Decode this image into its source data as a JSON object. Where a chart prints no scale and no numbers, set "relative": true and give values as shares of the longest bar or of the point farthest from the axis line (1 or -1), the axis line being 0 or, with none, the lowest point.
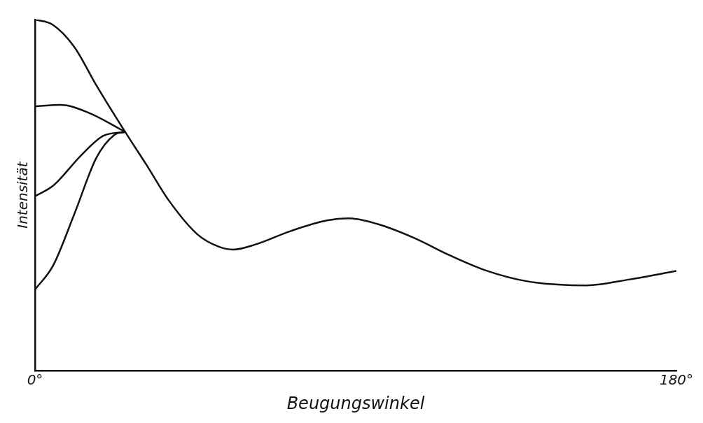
{
  "chart_data": {
    "type": "line",
    "relative": true,
    "xlabel": "Beugungswinkel",
    "ylabel": "Intensität",
    "xlim": [
      0,
      180
    ],
    "xticks": [
      {
        "value": 0,
        "label": "0°"
      },
      {
        "value": 180,
        "label": "180°"
      }
    ],
    "series": [
      {
        "color": "#111111",
        "x": [
          0,
          5,
          11.1,
          17.2,
          25.3,
          31.3,
          37.4,
          45.5,
          51.6,
          55.6,
          61.7,
          71.8,
          81.9,
          88,
          96,
          106.2,
          116.3,
          126.4,
          138.5,
          154.7,
          166.9,
          180
        ],
        "values": [
          1,
          0.985,
          0.921,
          0.813,
          0.68,
          0.586,
          0.487,
          0.389,
          0.353,
          0.345,
          0.359,
          0.398,
          0.428,
          0.434,
          0.418,
          0.379,
          0.329,
          0.286,
          0.254,
          0.243,
          0.26,
          0.284
        ]
      },
      {
        "color": "#111111",
        "x": [
          0,
          7.1,
          15.2,
          25.3
        ],
        "values": [
          0.753,
          0.757,
          0.734,
          0.68
        ]
      },
      {
        "color": "#111111",
        "x": [
          0,
          5.1,
          13.1,
          19.2,
          25.3
        ],
        "values": [
          0.497,
          0.527,
          0.615,
          0.669,
          0.68
        ]
      },
      {
        "color": "#111111",
        "x": [
          0,
          5.1,
          11.1,
          17.2,
          22.2,
          25.3
        ],
        "values": [
          0.231,
          0.3,
          0.448,
          0.606,
          0.671,
          0.68
        ]
      }
    ]
  }
}
